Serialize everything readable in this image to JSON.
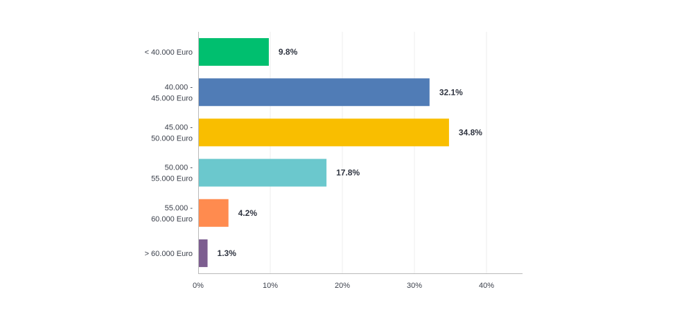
{
  "chart_data": {
    "type": "bar",
    "orientation": "horizontal",
    "categories": [
      [
        "< 40.000 Euro"
      ],
      [
        "40.000 -",
        "45.000 Euro"
      ],
      [
        "45.000 -",
        "50.000 Euro"
      ],
      [
        "50.000 -",
        "55.000 Euro"
      ],
      [
        "55.000 -",
        "60.000 Euro"
      ],
      [
        "> 60.000 Euro"
      ]
    ],
    "values": [
      9.8,
      32.1,
      34.8,
      17.8,
      4.2,
      1.3
    ],
    "value_labels": [
      "9.8%",
      "32.1%",
      "34.8%",
      "17.8%",
      "4.2%",
      "1.3%"
    ],
    "colors": [
      "#00bf6f",
      "#507cb6",
      "#f9be00",
      "#6bc8cd",
      "#ff8b4f",
      "#7d5e90"
    ],
    "xlim": [
      0,
      45
    ],
    "x_ticks": [
      0,
      10,
      20,
      30,
      40
    ],
    "x_tick_labels": [
      "0%",
      "10%",
      "20%",
      "30%",
      "40%"
    ],
    "grid": true,
    "title": "",
    "xlabel": "",
    "ylabel": ""
  }
}
